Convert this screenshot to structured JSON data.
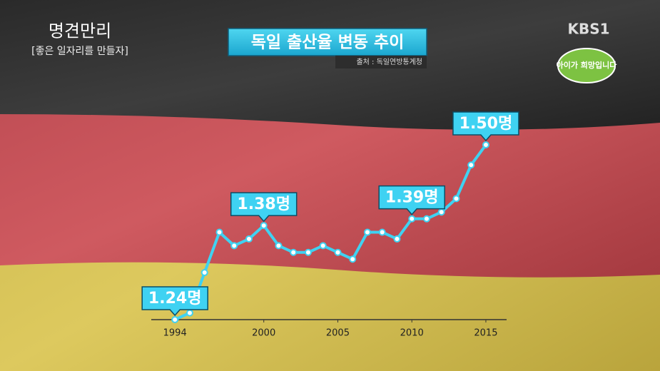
{
  "overlay": {
    "program": "명견만리",
    "program_subtitle": "[좋은 일자리를 만들자]",
    "channel": "KBS1",
    "campaign": "아이가 희망입니다"
  },
  "chart_data": {
    "type": "line",
    "title": "독일 출산율 변동 추이",
    "source": "출처 : 독일연방통계청",
    "x": [
      1994,
      1995,
      1996,
      1997,
      1998,
      1999,
      2000,
      2001,
      2002,
      2003,
      2004,
      2005,
      2006,
      2007,
      2008,
      2009,
      2010,
      2011,
      2012,
      2013,
      2014,
      2015
    ],
    "values": [
      1.24,
      1.25,
      1.31,
      1.37,
      1.35,
      1.36,
      1.38,
      1.35,
      1.34,
      1.34,
      1.35,
      1.34,
      1.33,
      1.37,
      1.37,
      1.36,
      1.39,
      1.39,
      1.4,
      1.42,
      1.47,
      1.5
    ],
    "value_labels": [
      "1.24명",
      null,
      null,
      null,
      null,
      null,
      "1.38명",
      null,
      null,
      null,
      null,
      null,
      null,
      null,
      null,
      null,
      "1.39명",
      null,
      null,
      null,
      null,
      "1.50명"
    ],
    "color": "#3fd2f2",
    "xlim": [
      1992.4,
      2016.4
    ],
    "xticks": [
      1994,
      2000,
      2005,
      2010,
      2015
    ],
    "ylim": [
      1.24,
      1.5
    ]
  }
}
